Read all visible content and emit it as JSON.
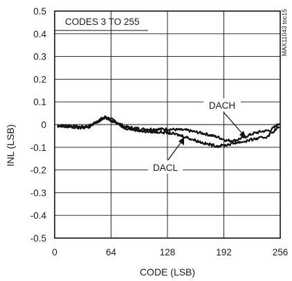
{
  "chart_data": {
    "type": "line",
    "xlabel": "CODE (LSB)",
    "ylabel": "INL (LSB)",
    "xlim": [
      0,
      256
    ],
    "ylim": [
      -0.5,
      0.5
    ],
    "x_ticks": [
      0,
      64,
      128,
      192,
      256
    ],
    "x_tick_labels": [
      "0",
      "64",
      "128",
      "192",
      "256"
    ],
    "y_ticks": [
      0.5,
      0.4,
      0.3,
      0.2,
      0.1,
      0,
      -0.1,
      -0.2,
      -0.3,
      -0.4,
      -0.5
    ],
    "y_tick_labels": [
      "0.5",
      "0.4",
      "0.3",
      "0.2",
      "0.1",
      "0",
      "-0.1",
      "-0.2",
      "-0.3",
      "-0.4",
      "-0.5"
    ],
    "grid": true,
    "annotation": "CODES 3 TO 255",
    "side_label": "MAX11043 toc15",
    "series": [
      {
        "name": "DACH",
        "points": [
          [
            3,
            -0.005
          ],
          [
            15,
            -0.005
          ],
          [
            30,
            -0.01
          ],
          [
            40,
            -0.005
          ],
          [
            50,
            0.02
          ],
          [
            58,
            0.035
          ],
          [
            66,
            0.02
          ],
          [
            80,
            -0.01
          ],
          [
            100,
            -0.02
          ],
          [
            128,
            -0.02
          ],
          [
            150,
            -0.025
          ],
          [
            170,
            -0.04
          ],
          [
            185,
            -0.055
          ],
          [
            195,
            -0.07
          ],
          [
            205,
            -0.07
          ],
          [
            215,
            -0.055
          ],
          [
            225,
            -0.04
          ],
          [
            235,
            -0.03
          ],
          [
            245,
            -0.025
          ],
          [
            255,
            0.005
          ]
        ]
      },
      {
        "name": "DACL",
        "points": [
          [
            3,
            -0.01
          ],
          [
            15,
            -0.01
          ],
          [
            30,
            -0.015
          ],
          [
            40,
            -0.01
          ],
          [
            50,
            0.015
          ],
          [
            58,
            0.03
          ],
          [
            66,
            0.015
          ],
          [
            80,
            -0.015
          ],
          [
            100,
            -0.03
          ],
          [
            128,
            -0.035
          ],
          [
            145,
            -0.05
          ],
          [
            160,
            -0.07
          ],
          [
            172,
            -0.085
          ],
          [
            185,
            -0.095
          ],
          [
            195,
            -0.09
          ],
          [
            205,
            -0.08
          ],
          [
            215,
            -0.075
          ],
          [
            225,
            -0.065
          ],
          [
            240,
            -0.055
          ],
          [
            255,
            -0.01
          ]
        ]
      }
    ]
  }
}
